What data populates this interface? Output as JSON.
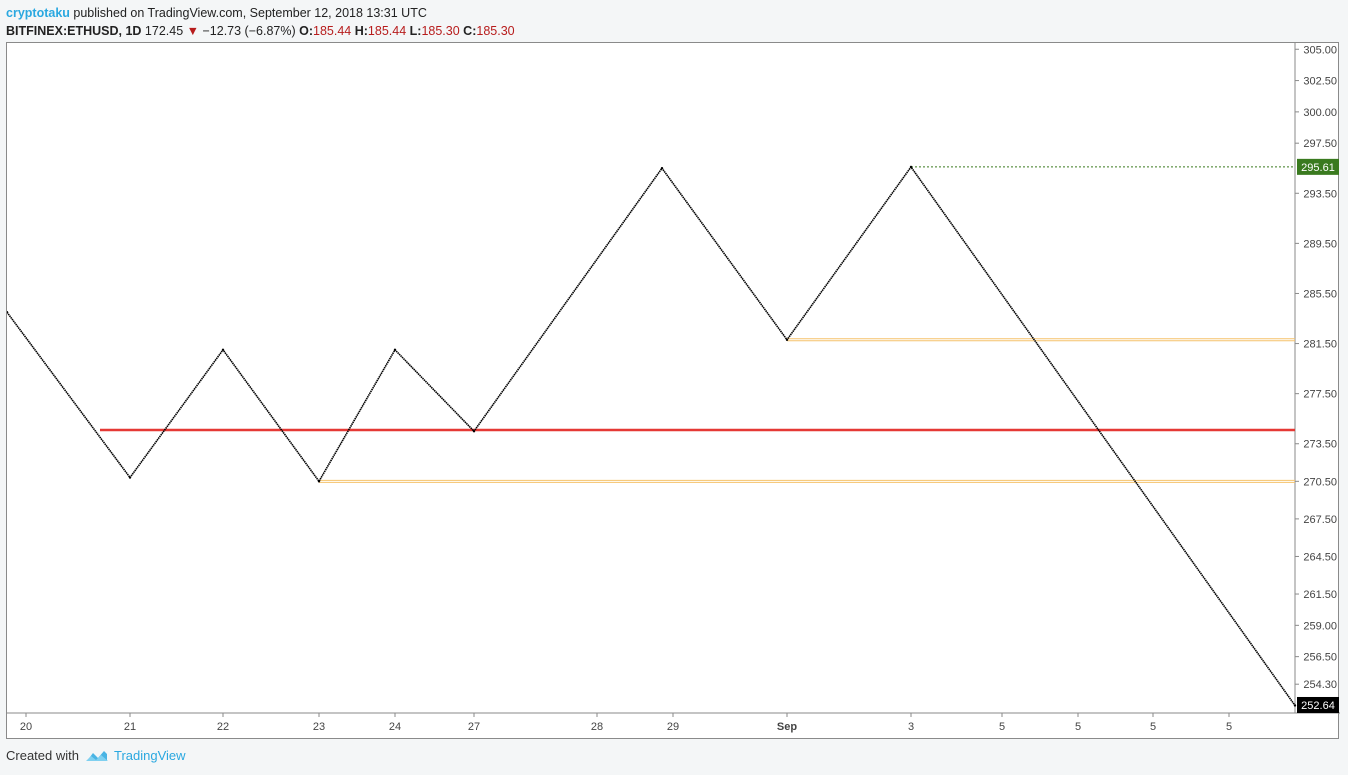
{
  "header": {
    "author": "cryptotaku",
    "published": "published on TradingView.com, September 12, 2018 13:31 UTC",
    "symbol": "BITFINEX:ETHUSD, 1D",
    "last": "172.45",
    "change": "−12.73 (−6.87%)",
    "o_label": "O:",
    "o": "185.44",
    "h_label": "H:",
    "h": "185.44",
    "l_label": "L:",
    "l": "185.30",
    "c_label": "C:",
    "c": "185.30"
  },
  "footer": {
    "created_with": "Created with",
    "brand": "TradingView"
  },
  "colors": {
    "price_line": "#000000",
    "support_line": "#e53935",
    "level_line": "#f5c26b",
    "resistance_tag": "#3a7a1f",
    "last_tag": "#000000",
    "accent": "#2aa8e0"
  },
  "chart_data": {
    "type": "line",
    "x_ticks": [
      "20",
      "21",
      "22",
      "23",
      "24",
      "27",
      "28",
      "29",
      "Sep",
      "3",
      "5",
      "5",
      "5",
      "5"
    ],
    "y_ticks": [
      "305.00",
      "302.50",
      "300.00",
      "297.50",
      "293.50",
      "289.50",
      "285.50",
      "281.50",
      "277.50",
      "273.50",
      "270.50",
      "267.50",
      "264.50",
      "261.50",
      "259.00",
      "256.50",
      "254.30"
    ],
    "y_range": [
      252.0,
      305.5
    ],
    "series": [
      {
        "points": [
          {
            "x": "20",
            "y": 284.0
          },
          {
            "x": "21",
            "y": 270.8
          },
          {
            "x": "22",
            "y": 281.0
          },
          {
            "x": "23",
            "y": 270.5
          },
          {
            "x": "24",
            "y": 281.0
          },
          {
            "x": "27",
            "y": 274.5
          },
          {
            "x": "29",
            "y": 295.5
          },
          {
            "x": "Sep",
            "y": 281.8
          },
          {
            "x": "3",
            "y": 295.6
          },
          {
            "x": "5",
            "y": 252.6
          }
        ]
      }
    ],
    "horizontal_levels": [
      {
        "value": 274.6,
        "kind": "support",
        "from": "21",
        "to": "end"
      },
      {
        "value": 281.8,
        "kind": "level",
        "from": "Sep",
        "to": "end"
      },
      {
        "value": 270.5,
        "kind": "level",
        "from": "23",
        "to": "end"
      },
      {
        "value": 295.61,
        "kind": "resistance",
        "from": "3",
        "to": "end"
      }
    ],
    "price_tags": [
      {
        "label": "295.61",
        "value": 295.61,
        "kind": "resistance"
      },
      {
        "label": "252.64",
        "value": 252.64,
        "kind": "last"
      }
    ]
  }
}
